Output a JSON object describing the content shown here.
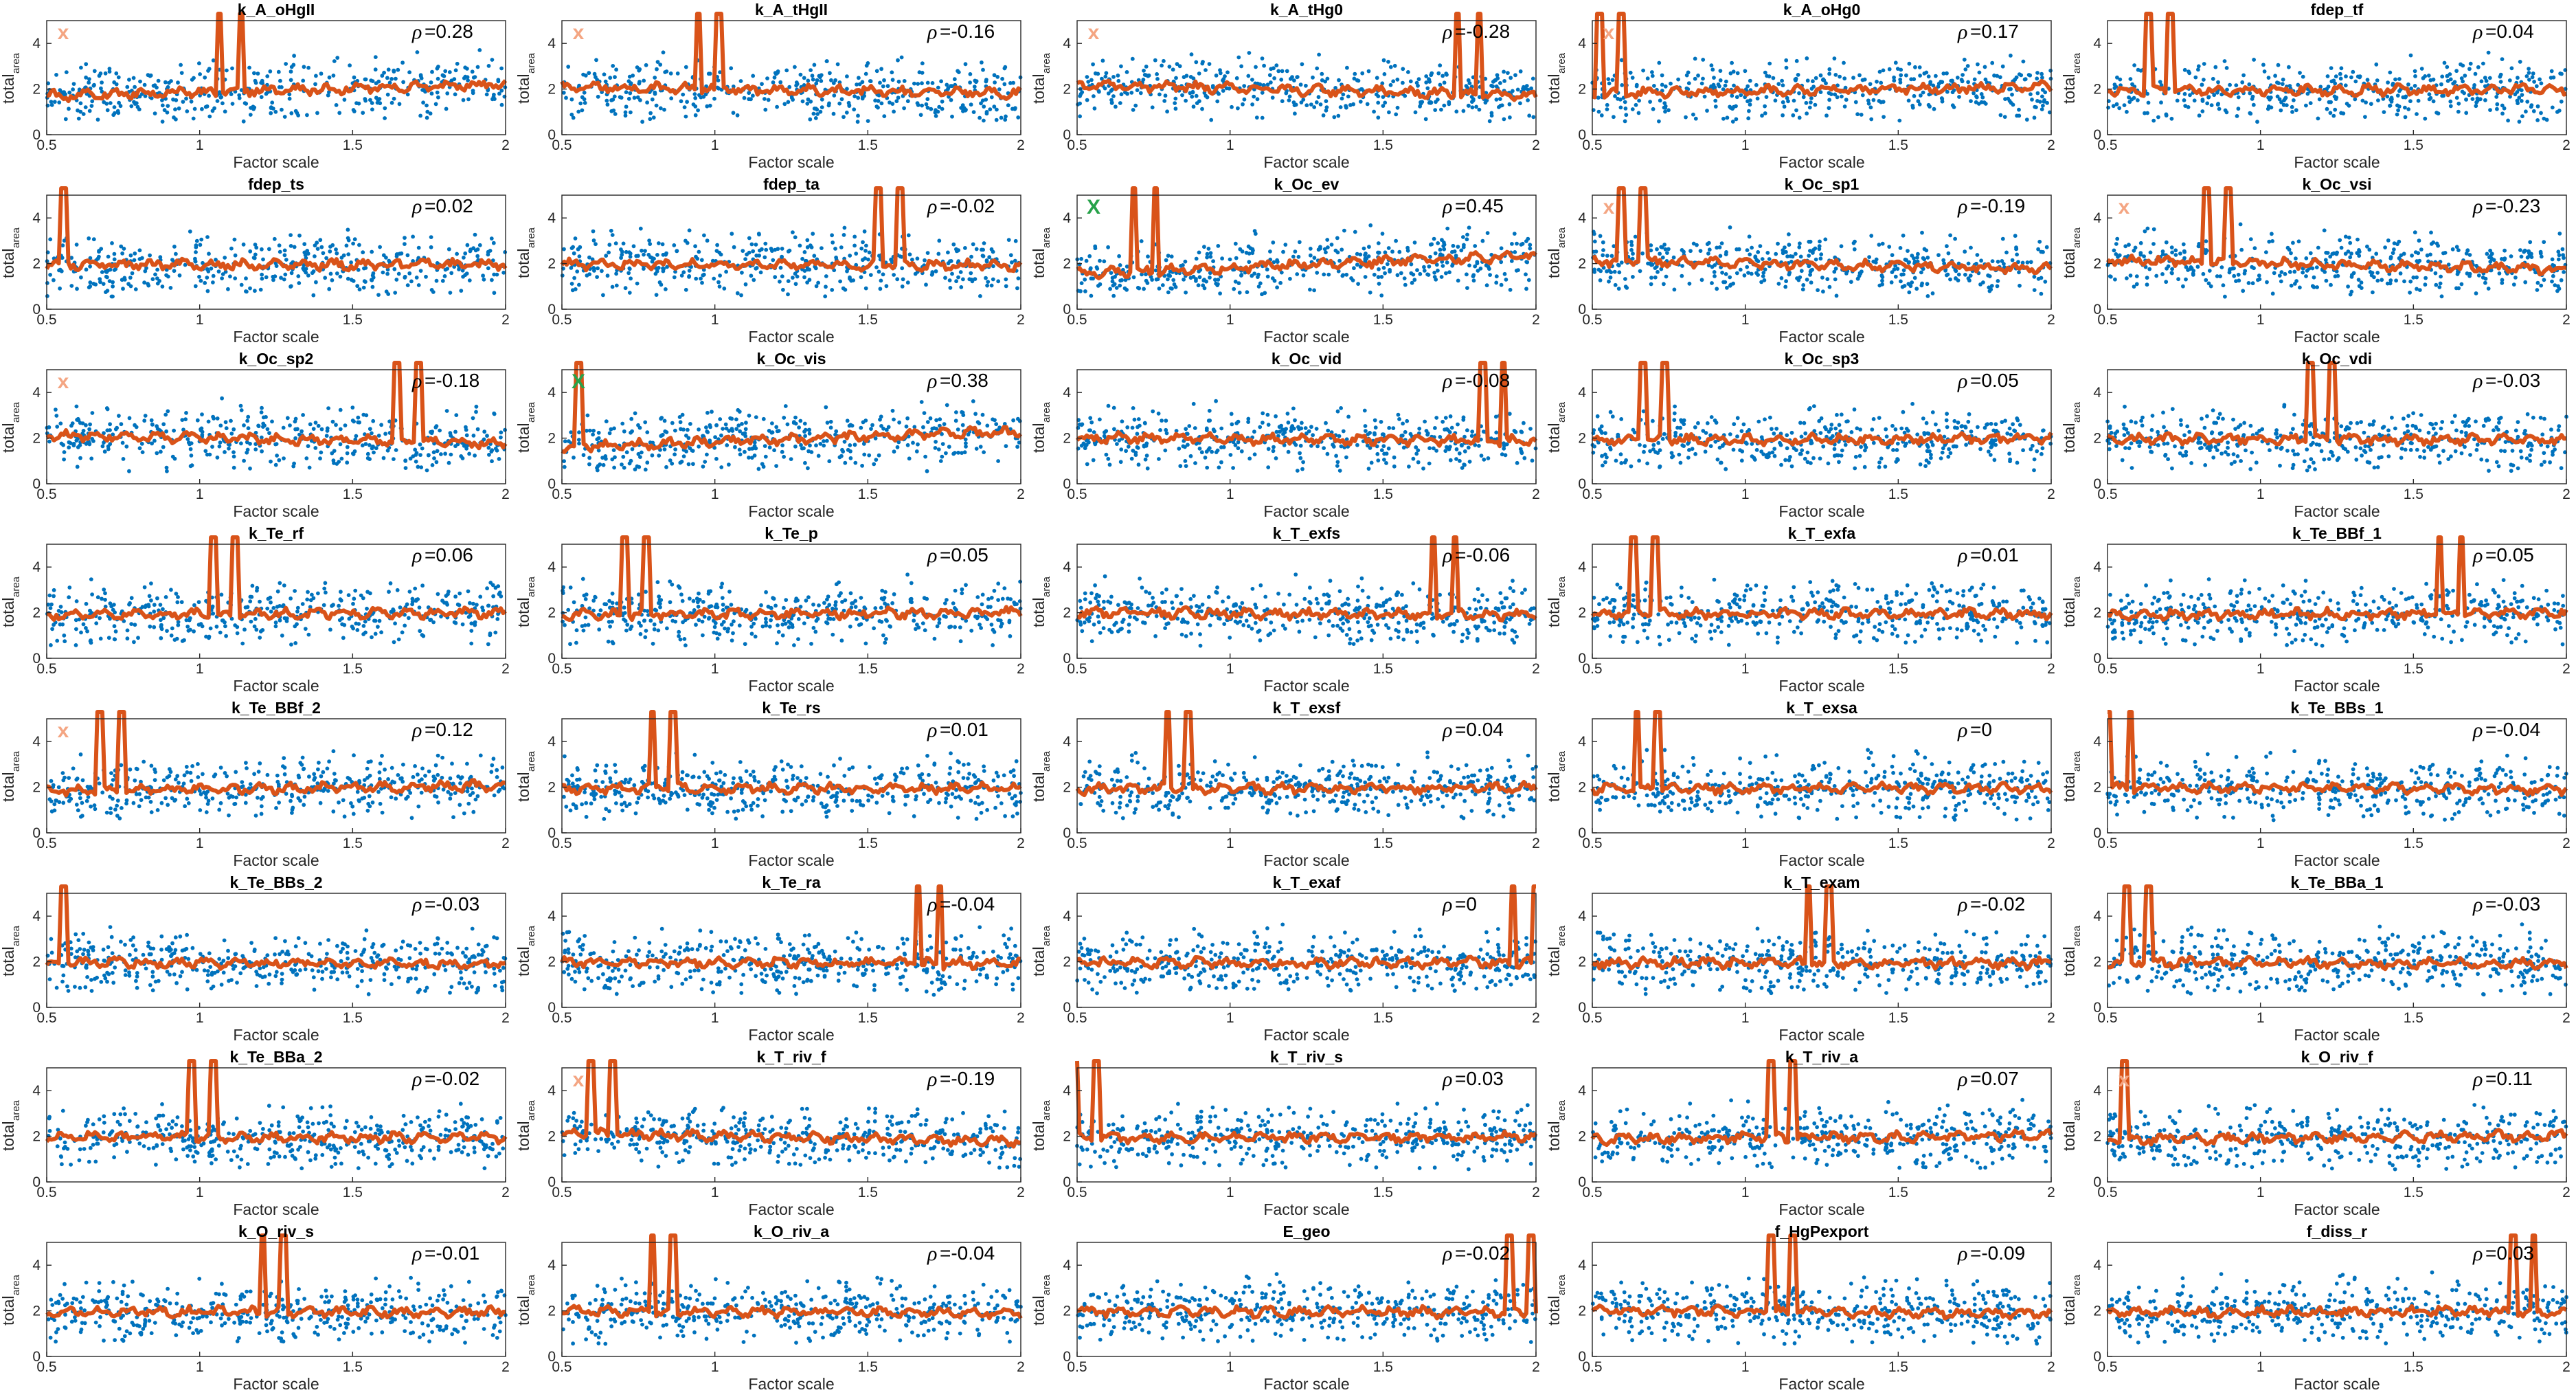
{
  "figure": {
    "xlabel": "Factor scale",
    "ylabel": "total",
    "ylabel_sub": "area",
    "corr_symbol": "ρ",
    "x_ticks": [
      "0.5",
      "1",
      "1.5",
      "2"
    ],
    "y_ticks": [
      "0",
      "2",
      "4"
    ],
    "colors": {
      "scatter": "#0072BD",
      "moving_mean": "#D95319",
      "marker_insensitive": "#F4A582",
      "marker_sensitive": "#27A24A",
      "axis": "#262626"
    }
  },
  "chart_data": {
    "type": "scatter",
    "layout": "small-multiples grid, 8 rows x 5 columns",
    "xlabel": "Factor scale",
    "ylabel": "total_area",
    "xlim": [
      0.5,
      2
    ],
    "ylim": [
      0,
      5
    ],
    "series_types": [
      {
        "name": "samples",
        "type": "scatter",
        "color": "#0072BD"
      },
      {
        "name": "moving mean",
        "type": "line",
        "color": "#D95319"
      }
    ],
    "panels": [
      {
        "title": "k_A_oHgII",
        "rho": "=0.28",
        "mark": "x",
        "spike": 1.1
      },
      {
        "title": "k_A_tHgII",
        "rho": "=-0.16",
        "mark": "x",
        "spike": 0.98
      },
      {
        "title": "k_A_tHg0",
        "rho": "=-0.28",
        "mark": "x",
        "spike": 1.78
      },
      {
        "title": "k_A_oHg0",
        "rho": "=0.17",
        "mark": "x",
        "spike": 0.56
      },
      {
        "title": "fdep_tf",
        "rho": "=0.04",
        "mark": "",
        "spike": 0.67
      },
      {
        "title": "fdep_ts",
        "rho": "=0.02",
        "mark": "",
        "spike": 0.52
      },
      {
        "title": "fdep_ta",
        "rho": "=-0.02",
        "mark": "",
        "spike": 1.57
      },
      {
        "title": "k_Oc_ev",
        "rho": "=0.45",
        "mark": "X",
        "spike": 0.72
      },
      {
        "title": "k_Oc_sp1",
        "rho": "=-0.19",
        "mark": "x",
        "spike": 0.63
      },
      {
        "title": "k_Oc_vsi",
        "rho": "=-0.23",
        "mark": "x",
        "spike": 0.86
      },
      {
        "title": "k_Oc_sp2",
        "rho": "=-0.18",
        "mark": "x",
        "spike": 1.68
      },
      {
        "title": "k_Oc_vis",
        "rho": "=0.38",
        "mark": "X",
        "spike": 0.52
      },
      {
        "title": "k_Oc_vid",
        "rho": "=-0.08",
        "mark": "",
        "spike": 1.86
      },
      {
        "title": "k_Oc_sp3",
        "rho": "=0.05",
        "mark": "",
        "spike": 0.7
      },
      {
        "title": "k_Oc_vdi",
        "rho": "=-0.03",
        "mark": "",
        "spike": 1.2
      },
      {
        "title": "k_Te_rf",
        "rho": "=0.06",
        "mark": "",
        "spike": 1.08
      },
      {
        "title": "k_Te_p",
        "rho": "=0.05",
        "mark": "",
        "spike": 0.74
      },
      {
        "title": "k_T_exfs",
        "rho": "=-0.06",
        "mark": "",
        "spike": 1.7
      },
      {
        "title": "k_T_exfa",
        "rho": "=0.01",
        "mark": "",
        "spike": 0.67
      },
      {
        "title": "k_Te_BBf_1",
        "rho": "=0.05",
        "mark": "",
        "spike": 1.62
      },
      {
        "title": "k_Te_BBf_2",
        "rho": "=0.12",
        "mark": "x",
        "spike": 0.71
      },
      {
        "title": "k_Te_rs",
        "rho": "=0.01",
        "mark": "",
        "spike": 0.83
      },
      {
        "title": "k_T_exsf",
        "rho": "=0.04",
        "mark": "",
        "spike": 0.83
      },
      {
        "title": "k_T_exsa",
        "rho": "=0",
        "mark": "",
        "spike": 0.68
      },
      {
        "title": "k_Te_BBs_1",
        "rho": "=-0.04",
        "mark": "",
        "spike": 0.54
      },
      {
        "title": "k_Te_BBs_2",
        "rho": "=-0.03",
        "mark": "",
        "spike": 0.52
      },
      {
        "title": "k_Te_ra",
        "rho": "=-0.04",
        "mark": "",
        "spike": 1.7
      },
      {
        "title": "k_T_exaf",
        "rho": "=0",
        "mark": "",
        "spike": 1.96
      },
      {
        "title": "k_T_exam",
        "rho": "=-0.02",
        "mark": "",
        "spike": 1.24
      },
      {
        "title": "k_Te_BBa_1",
        "rho": "=-0.03",
        "mark": "",
        "spike": 0.6
      },
      {
        "title": "k_Te_BBa_2",
        "rho": "=-0.02",
        "mark": "",
        "spike": 1.01
      },
      {
        "title": "k_T_riv_f",
        "rho": "=-0.19",
        "mark": "x",
        "spike": 0.63
      },
      {
        "title": "k_T_riv_s",
        "rho": "=0.03",
        "mark": "",
        "spike": 0.53
      },
      {
        "title": "k_T_riv_a",
        "rho": "=0.07",
        "mark": "",
        "spike": 1.12
      },
      {
        "title": "k_O_riv_f",
        "rho": "=0.11",
        "mark": "x",
        "spike": 0.52
      },
      {
        "title": "k_O_riv_s",
        "rho": "=-0.01",
        "mark": "",
        "spike": 1.24
      },
      {
        "title": "k_O_riv_a",
        "rho": "=-0.04",
        "mark": "",
        "spike": 0.83
      },
      {
        "title": "E_geo",
        "rho": "=-0.02",
        "mark": "",
        "spike": 1.95
      },
      {
        "title": "f_HgPexport",
        "rho": "=-0.09",
        "mark": "",
        "spike": 1.12
      },
      {
        "title": "f_diss_r",
        "rho": "=0.03",
        "mark": "",
        "spike": 1.86
      }
    ]
  }
}
